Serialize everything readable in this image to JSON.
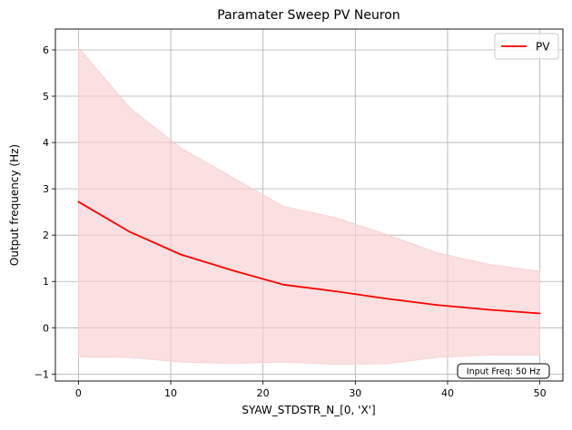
{
  "chart_data": {
    "type": "line",
    "title": "Paramater Sweep PV Neuron",
    "xlabel": "SYAW_STDSTR_N_[0, 'X']",
    "ylabel": "Output frequency (Hz)",
    "xlim": [
      -2.5,
      52.5
    ],
    "ylim": [
      -1.15,
      6.45
    ],
    "xticks": [
      0,
      10,
      20,
      30,
      40,
      50
    ],
    "yticks": [
      -1,
      0,
      1,
      2,
      3,
      4,
      5,
      6
    ],
    "xtick_labels": [
      "0",
      "10",
      "20",
      "30",
      "40",
      "50"
    ],
    "ytick_labels": [
      "−1",
      "0",
      "1",
      "2",
      "3",
      "4",
      "5",
      "6"
    ],
    "grid": true,
    "legend_position": "top-right",
    "annotation": "Input Freq: 50 Hz",
    "series": [
      {
        "name": "PV",
        "color": "#ff0000",
        "x": [
          0,
          5.56,
          11.11,
          16.67,
          22.22,
          27.78,
          33.33,
          38.89,
          44.44,
          50
        ],
        "y": [
          2.72,
          2.07,
          1.58,
          1.24,
          0.93,
          0.79,
          0.63,
          0.49,
          0.39,
          0.31
        ],
        "band_upper": [
          6.05,
          4.75,
          3.88,
          3.25,
          2.62,
          2.38,
          2.02,
          1.62,
          1.37,
          1.22
        ],
        "band_lower": [
          -0.63,
          -0.64,
          -0.74,
          -0.77,
          -0.74,
          -0.79,
          -0.78,
          -0.64,
          -0.59,
          -0.59
        ],
        "band_color": "#f8d0d0"
      }
    ]
  }
}
